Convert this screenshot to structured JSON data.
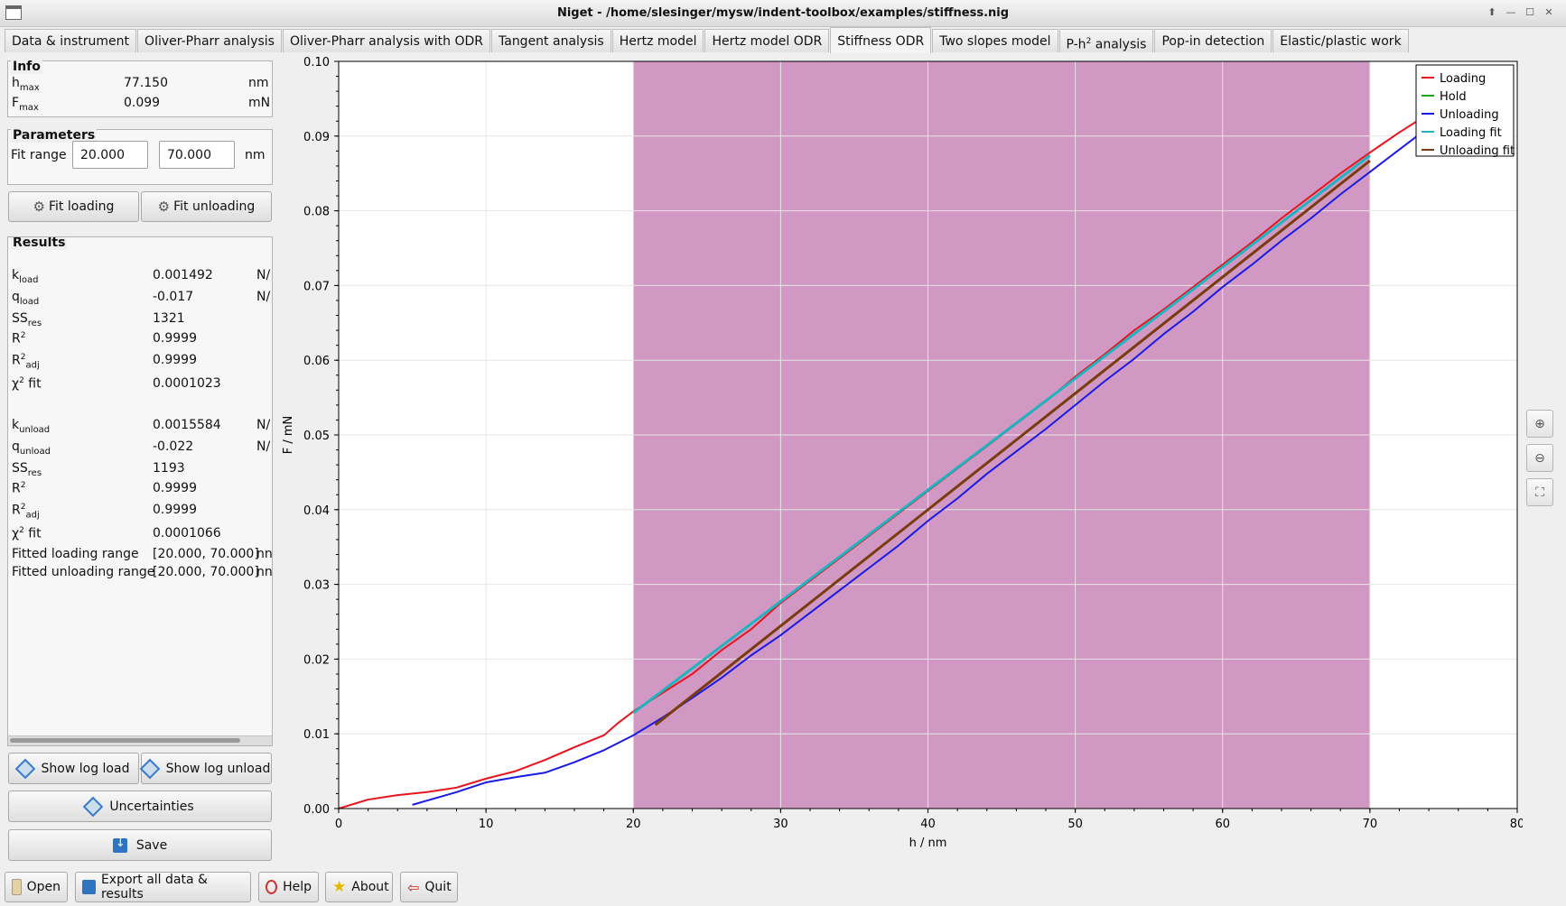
{
  "window": {
    "title": "Niget - /home/slesinger/mysw/indent-toolbox/examples/stiffness.nig"
  },
  "tabs": [
    {
      "label": "Data & instrument"
    },
    {
      "label": "Oliver-Pharr analysis"
    },
    {
      "label": "Oliver-Pharr analysis with ODR"
    },
    {
      "label": "Tangent analysis"
    },
    {
      "label": "Hertz model"
    },
    {
      "label": "Hertz model ODR"
    },
    {
      "label": "Stiffness ODR"
    },
    {
      "label": "Two slopes model"
    },
    {
      "label": "P-h",
      "sup": "2",
      "suffix": " analysis"
    },
    {
      "label": "Pop-in detection"
    },
    {
      "label": "Elastic/plastic work"
    }
  ],
  "info": {
    "title": "Info",
    "hmax": {
      "sym": "h",
      "sub": "max",
      "value": "77.150",
      "unit": "nm"
    },
    "fmax": {
      "sym": "F",
      "sub": "max",
      "value": "0.099",
      "unit": "mN"
    }
  },
  "parameters": {
    "title": "Parameters",
    "fit_range_label": "Fit range",
    "from": "20.000",
    "to": "70.000",
    "unit": "nm"
  },
  "buttons": {
    "fit_loading": "Fit loading",
    "fit_unloading": "Fit unloading",
    "show_log_load": "Show log load",
    "show_log_unload": "Show log unload",
    "uncertainties": "Uncertainties",
    "save": "Save"
  },
  "results": {
    "title": "Results",
    "load": [
      {
        "sym": "k",
        "sub": "load",
        "value": "0.001492",
        "unit": "N/"
      },
      {
        "sym": "q",
        "sub": "load",
        "value": "-0.017",
        "unit": "N/"
      },
      {
        "sym": "SS",
        "sub": "res",
        "value": "1321",
        "unit": ""
      },
      {
        "sym": "R",
        "sup": "2",
        "value": "0.9999",
        "unit": ""
      },
      {
        "sym": "R",
        "sup": "2",
        "sub": "adj",
        "value": "0.9999",
        "unit": ""
      },
      {
        "sym": "χ",
        "sup": "2",
        "suffix": " fit",
        "value": "0.0001023",
        "unit": ""
      }
    ],
    "unload": [
      {
        "sym": "k",
        "sub": "unload",
        "value": "0.0015584",
        "unit": "N/"
      },
      {
        "sym": "q",
        "sub": "unload",
        "value": "-0.022",
        "unit": "N/"
      },
      {
        "sym": "SS",
        "sub": "res",
        "value": "1193",
        "unit": ""
      },
      {
        "sym": "R",
        "sup": "2",
        "value": "0.9999",
        "unit": ""
      },
      {
        "sym": "R",
        "sup": "2",
        "sub": "adj",
        "value": "0.9999",
        "unit": ""
      },
      {
        "sym": "χ",
        "sup": "2",
        "suffix": " fit",
        "value": "0.0001066",
        "unit": ""
      }
    ],
    "ranges": [
      {
        "label": "Fitted loading range",
        "value": "[20.000, 70.000]",
        "unit": "nn"
      },
      {
        "label": "Fitted unloading range",
        "value": "[20.000, 70.000]",
        "unit": "nn"
      }
    ]
  },
  "bottom": {
    "open": "Open",
    "export": "Export all data & results",
    "help": "Help",
    "about": "About",
    "quit": "Quit"
  },
  "chart_data": {
    "type": "line",
    "xlabel": "h / nm",
    "ylabel": "F / mN",
    "xlim": [
      0,
      80
    ],
    "ylim": [
      0,
      0.1
    ],
    "xticks": [
      "0",
      "10",
      "20",
      "30",
      "40",
      "50",
      "60",
      "70",
      "80"
    ],
    "yticks": [
      "0.00",
      "0.01",
      "0.02",
      "0.03",
      "0.04",
      "0.05",
      "0.06",
      "0.07",
      "0.08",
      "0.09",
      "0.10"
    ],
    "highlight_range": [
      20,
      70
    ],
    "highlight_color": "#d198c3",
    "grid": true,
    "legend_position": "top-right",
    "series": [
      {
        "name": "Loading",
        "color": "#e8141c",
        "x": [
          0,
          2,
          4,
          6,
          8,
          10,
          12,
          14,
          16,
          17,
          18,
          19,
          20,
          22,
          24,
          26,
          28,
          30,
          32,
          34,
          36,
          38,
          40,
          42,
          44,
          46,
          48,
          50,
          52,
          54,
          56,
          58,
          60,
          62,
          64,
          66,
          68,
          70,
          72,
          74
        ],
        "y": [
          0,
          0.0012,
          0.0018,
          0.0022,
          0.0028,
          0.004,
          0.005,
          0.0065,
          0.0082,
          0.009,
          0.0098,
          0.0115,
          0.013,
          0.0155,
          0.018,
          0.0212,
          0.024,
          0.0275,
          0.0305,
          0.0335,
          0.0365,
          0.0395,
          0.0425,
          0.0455,
          0.0485,
          0.0515,
          0.0545,
          0.0578,
          0.0608,
          0.064,
          0.0668,
          0.0698,
          0.0728,
          0.0758,
          0.079,
          0.082,
          0.085,
          0.0878,
          0.0905,
          0.093
        ]
      },
      {
        "name": "Hold",
        "color": "#1aa51a",
        "x": [],
        "y": []
      },
      {
        "name": "Unloading",
        "color": "#1a1ae6",
        "x": [
          5,
          8,
          10,
          12,
          14,
          16,
          18,
          20,
          22,
          24,
          26,
          28,
          30,
          32,
          34,
          36,
          38,
          40,
          42,
          44,
          46,
          48,
          50,
          52,
          54,
          56,
          58,
          60,
          62,
          64,
          66,
          68,
          70,
          72,
          74
        ],
        "y": [
          0.0005,
          0.0022,
          0.0035,
          0.0042,
          0.0048,
          0.0062,
          0.0078,
          0.0098,
          0.0122,
          0.0148,
          0.0175,
          0.0205,
          0.0232,
          0.0262,
          0.0292,
          0.0322,
          0.0352,
          0.0385,
          0.0415,
          0.0448,
          0.0478,
          0.0508,
          0.054,
          0.0572,
          0.0602,
          0.0635,
          0.0665,
          0.0698,
          0.0728,
          0.076,
          0.079,
          0.0822,
          0.0852,
          0.0882,
          0.0912
        ]
      },
      {
        "name": "Loading fit",
        "color": "#1fb3c0",
        "x": [
          20,
          70
        ],
        "y": [
          0.0128,
          0.0874
        ]
      },
      {
        "name": "Unloading fit",
        "color": "#7a3b0d",
        "x": [
          21.5,
          70
        ],
        "y": [
          0.0112,
          0.0867
        ]
      }
    ]
  }
}
